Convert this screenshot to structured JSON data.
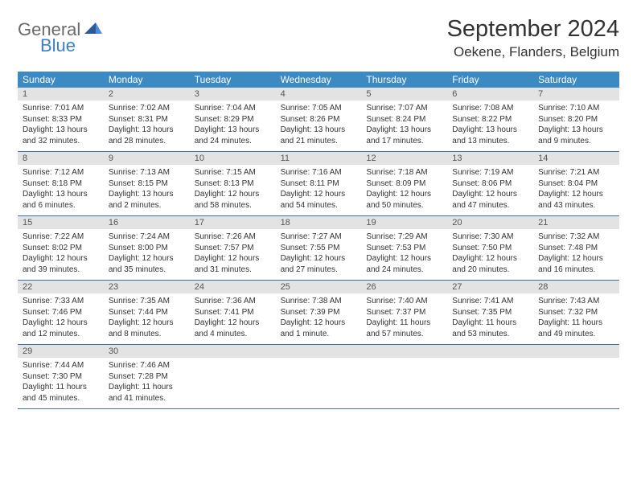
{
  "logo": {
    "general": "General",
    "blue": "Blue"
  },
  "title": "September 2024",
  "location": "Oekene, Flanders, Belgium",
  "colors": {
    "header_bar": "#3b8ac4",
    "daynum_bg": "#e3e3e3",
    "row_border": "#3b6fa0",
    "text": "#333333",
    "logo_gray": "#6a6a6a",
    "logo_blue": "#3b7fc4"
  },
  "daysOfWeek": [
    "Sunday",
    "Monday",
    "Tuesday",
    "Wednesday",
    "Thursday",
    "Friday",
    "Saturday"
  ],
  "weeks": [
    [
      {
        "n": "1",
        "sunrise": "Sunrise: 7:01 AM",
        "sunset": "Sunset: 8:33 PM",
        "day1": "Daylight: 13 hours",
        "day2": "and 32 minutes."
      },
      {
        "n": "2",
        "sunrise": "Sunrise: 7:02 AM",
        "sunset": "Sunset: 8:31 PM",
        "day1": "Daylight: 13 hours",
        "day2": "and 28 minutes."
      },
      {
        "n": "3",
        "sunrise": "Sunrise: 7:04 AM",
        "sunset": "Sunset: 8:29 PM",
        "day1": "Daylight: 13 hours",
        "day2": "and 24 minutes."
      },
      {
        "n": "4",
        "sunrise": "Sunrise: 7:05 AM",
        "sunset": "Sunset: 8:26 PM",
        "day1": "Daylight: 13 hours",
        "day2": "and 21 minutes."
      },
      {
        "n": "5",
        "sunrise": "Sunrise: 7:07 AM",
        "sunset": "Sunset: 8:24 PM",
        "day1": "Daylight: 13 hours",
        "day2": "and 17 minutes."
      },
      {
        "n": "6",
        "sunrise": "Sunrise: 7:08 AM",
        "sunset": "Sunset: 8:22 PM",
        "day1": "Daylight: 13 hours",
        "day2": "and 13 minutes."
      },
      {
        "n": "7",
        "sunrise": "Sunrise: 7:10 AM",
        "sunset": "Sunset: 8:20 PM",
        "day1": "Daylight: 13 hours",
        "day2": "and 9 minutes."
      }
    ],
    [
      {
        "n": "8",
        "sunrise": "Sunrise: 7:12 AM",
        "sunset": "Sunset: 8:18 PM",
        "day1": "Daylight: 13 hours",
        "day2": "and 6 minutes."
      },
      {
        "n": "9",
        "sunrise": "Sunrise: 7:13 AM",
        "sunset": "Sunset: 8:15 PM",
        "day1": "Daylight: 13 hours",
        "day2": "and 2 minutes."
      },
      {
        "n": "10",
        "sunrise": "Sunrise: 7:15 AM",
        "sunset": "Sunset: 8:13 PM",
        "day1": "Daylight: 12 hours",
        "day2": "and 58 minutes."
      },
      {
        "n": "11",
        "sunrise": "Sunrise: 7:16 AM",
        "sunset": "Sunset: 8:11 PM",
        "day1": "Daylight: 12 hours",
        "day2": "and 54 minutes."
      },
      {
        "n": "12",
        "sunrise": "Sunrise: 7:18 AM",
        "sunset": "Sunset: 8:09 PM",
        "day1": "Daylight: 12 hours",
        "day2": "and 50 minutes."
      },
      {
        "n": "13",
        "sunrise": "Sunrise: 7:19 AM",
        "sunset": "Sunset: 8:06 PM",
        "day1": "Daylight: 12 hours",
        "day2": "and 47 minutes."
      },
      {
        "n": "14",
        "sunrise": "Sunrise: 7:21 AM",
        "sunset": "Sunset: 8:04 PM",
        "day1": "Daylight: 12 hours",
        "day2": "and 43 minutes."
      }
    ],
    [
      {
        "n": "15",
        "sunrise": "Sunrise: 7:22 AM",
        "sunset": "Sunset: 8:02 PM",
        "day1": "Daylight: 12 hours",
        "day2": "and 39 minutes."
      },
      {
        "n": "16",
        "sunrise": "Sunrise: 7:24 AM",
        "sunset": "Sunset: 8:00 PM",
        "day1": "Daylight: 12 hours",
        "day2": "and 35 minutes."
      },
      {
        "n": "17",
        "sunrise": "Sunrise: 7:26 AM",
        "sunset": "Sunset: 7:57 PM",
        "day1": "Daylight: 12 hours",
        "day2": "and 31 minutes."
      },
      {
        "n": "18",
        "sunrise": "Sunrise: 7:27 AM",
        "sunset": "Sunset: 7:55 PM",
        "day1": "Daylight: 12 hours",
        "day2": "and 27 minutes."
      },
      {
        "n": "19",
        "sunrise": "Sunrise: 7:29 AM",
        "sunset": "Sunset: 7:53 PM",
        "day1": "Daylight: 12 hours",
        "day2": "and 24 minutes."
      },
      {
        "n": "20",
        "sunrise": "Sunrise: 7:30 AM",
        "sunset": "Sunset: 7:50 PM",
        "day1": "Daylight: 12 hours",
        "day2": "and 20 minutes."
      },
      {
        "n": "21",
        "sunrise": "Sunrise: 7:32 AM",
        "sunset": "Sunset: 7:48 PM",
        "day1": "Daylight: 12 hours",
        "day2": "and 16 minutes."
      }
    ],
    [
      {
        "n": "22",
        "sunrise": "Sunrise: 7:33 AM",
        "sunset": "Sunset: 7:46 PM",
        "day1": "Daylight: 12 hours",
        "day2": "and 12 minutes."
      },
      {
        "n": "23",
        "sunrise": "Sunrise: 7:35 AM",
        "sunset": "Sunset: 7:44 PM",
        "day1": "Daylight: 12 hours",
        "day2": "and 8 minutes."
      },
      {
        "n": "24",
        "sunrise": "Sunrise: 7:36 AM",
        "sunset": "Sunset: 7:41 PM",
        "day1": "Daylight: 12 hours",
        "day2": "and 4 minutes."
      },
      {
        "n": "25",
        "sunrise": "Sunrise: 7:38 AM",
        "sunset": "Sunset: 7:39 PM",
        "day1": "Daylight: 12 hours",
        "day2": "and 1 minute."
      },
      {
        "n": "26",
        "sunrise": "Sunrise: 7:40 AM",
        "sunset": "Sunset: 7:37 PM",
        "day1": "Daylight: 11 hours",
        "day2": "and 57 minutes."
      },
      {
        "n": "27",
        "sunrise": "Sunrise: 7:41 AM",
        "sunset": "Sunset: 7:35 PM",
        "day1": "Daylight: 11 hours",
        "day2": "and 53 minutes."
      },
      {
        "n": "28",
        "sunrise": "Sunrise: 7:43 AM",
        "sunset": "Sunset: 7:32 PM",
        "day1": "Daylight: 11 hours",
        "day2": "and 49 minutes."
      }
    ],
    [
      {
        "n": "29",
        "sunrise": "Sunrise: 7:44 AM",
        "sunset": "Sunset: 7:30 PM",
        "day1": "Daylight: 11 hours",
        "day2": "and 45 minutes."
      },
      {
        "n": "30",
        "sunrise": "Sunrise: 7:46 AM",
        "sunset": "Sunset: 7:28 PM",
        "day1": "Daylight: 11 hours",
        "day2": "and 41 minutes."
      },
      {
        "empty": true
      },
      {
        "empty": true
      },
      {
        "empty": true
      },
      {
        "empty": true
      },
      {
        "empty": true
      }
    ]
  ]
}
